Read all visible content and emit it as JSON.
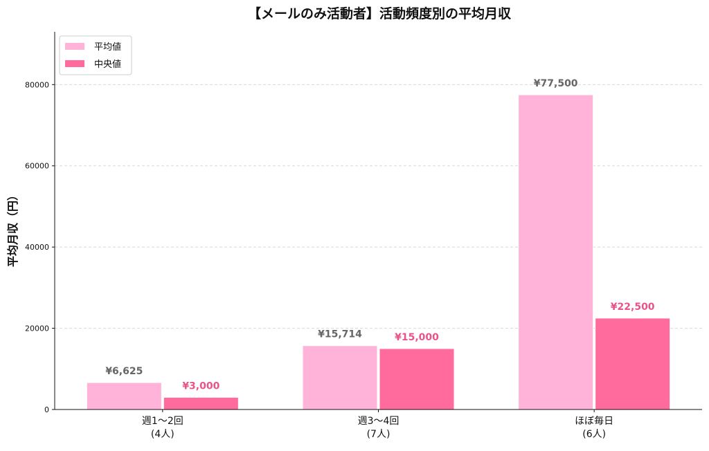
{
  "chart_data": {
    "type": "bar",
    "title": "【メールのみ活動者】活動頻度別の平均月収",
    "ylabel": "平均月収（円）",
    "xlabel": "",
    "categories": [
      {
        "line1": "週1〜2回",
        "line2": "(4人)"
      },
      {
        "line1": "週3〜4回",
        "line2": "(7人)"
      },
      {
        "line1": "ほぼ毎日",
        "line2": "(6人)"
      }
    ],
    "series": [
      {
        "name": "平均値",
        "color": "#FFB3D9",
        "label_color": "#666666",
        "values": [
          6625,
          15714,
          77500
        ],
        "labels": [
          "¥6,625",
          "¥15,714",
          "¥77,500"
        ]
      },
      {
        "name": "中央値",
        "color": "#FF6B9D",
        "label_color": "#E8548A",
        "values": [
          3000,
          15000,
          22500
        ],
        "labels": [
          "¥3,000",
          "¥15,000",
          "¥22,500"
        ]
      }
    ],
    "yticks": [
      "0",
      "20000",
      "40000",
      "60000",
      "80000"
    ],
    "ylim": [
      0,
      93000
    ],
    "grid": true,
    "legend_position": "top-left"
  }
}
